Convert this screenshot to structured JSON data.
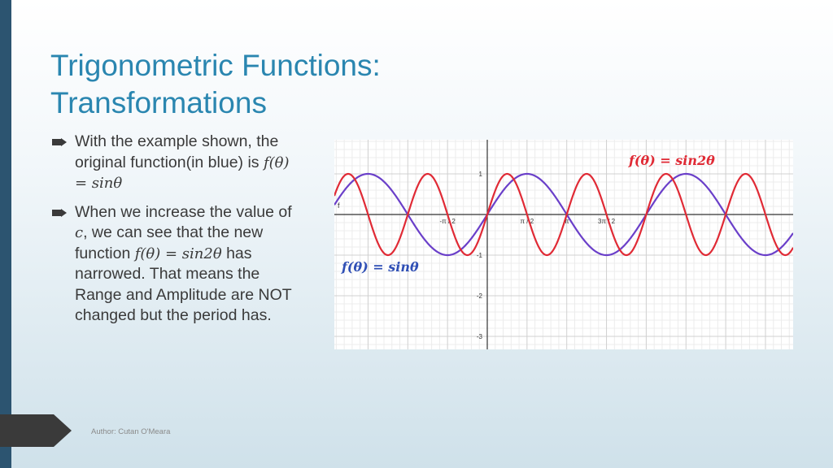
{
  "slide": {
    "title_line1": "Trigonometric Functions:",
    "title_line2": "Transformations",
    "bullets": [
      {
        "t1": "With the example shown, the original function(in blue) is ",
        "m1": "f(θ) = sinθ"
      },
      {
        "t1": "When we increase the value of ",
        "m1": "c",
        "t2": ", we can see that the new function ",
        "m2": "f(θ) = sin2θ",
        "t3": " has narrowed. That means the Range and Amplitude are NOT changed but the period has."
      }
    ],
    "author": "Author: Cutan O'Meara",
    "colors": {
      "title": "#2a86b0",
      "sidebar": "#2c5470",
      "blue_curve": "#6a3fc9",
      "red_curve": "#e02a35"
    }
  },
  "chart_data": {
    "type": "line",
    "x_ticks": [
      "-π / 2",
      "π / 2",
      "π",
      "3π / 2"
    ],
    "y_ticks": [
      "1",
      "-1",
      "-2",
      "-3"
    ],
    "axis_label_f": "f",
    "series": [
      {
        "name": "f(θ) = sinθ",
        "function": "sin",
        "color": "#6a3fc9"
      },
      {
        "name": "f(θ) = sin2θ",
        "function": "sin2",
        "color": "#e02a35"
      }
    ],
    "xlim": [
      -3.0,
      6.0
    ],
    "ylim": [
      -3.3,
      1.8
    ],
    "grid": true
  }
}
